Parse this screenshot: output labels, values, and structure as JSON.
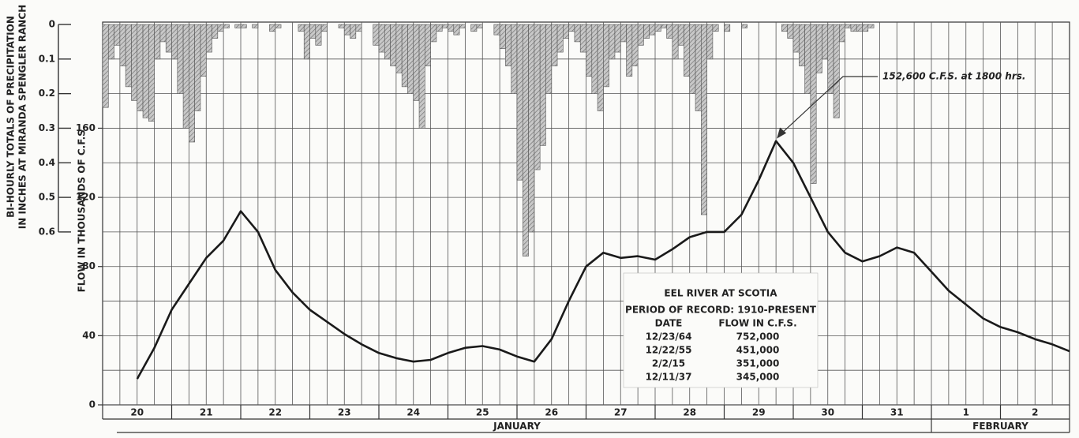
{
  "chart_data": {
    "type": "combo",
    "days": [
      "20",
      "21",
      "22",
      "23",
      "24",
      "25",
      "26",
      "27",
      "28",
      "29",
      "30",
      "31",
      "1",
      "2"
    ],
    "months": [
      "JANUARY",
      "FEBRUARY"
    ],
    "precipitation": {
      "type": "bar",
      "ylabel": [
        "BI-HOURLY TOTALS OF PRECIPITATION",
        "IN INCHES AT MIRANDA SPENGLER RANCH"
      ],
      "color": "#a8a8a8",
      "ylim": [
        0,
        1.1
      ],
      "yticks": [
        0,
        0.1,
        0.2,
        0.3,
        0.4,
        0.5,
        0.6
      ],
      "values": [
        0.24,
        0.1,
        0.06,
        0.12,
        0.18,
        0.22,
        0.25,
        0.27,
        0.28,
        0.1,
        0.05,
        0.08,
        0.1,
        0.2,
        0.3,
        0.34,
        0.25,
        0.15,
        0.08,
        0.04,
        0.02,
        0.01,
        0,
        0.01,
        0.01,
        0,
        0.01,
        0,
        0,
        0.02,
        0.01,
        0,
        0,
        0,
        0.02,
        0.1,
        0.04,
        0.06,
        0.02,
        0,
        0,
        0.01,
        0.03,
        0.04,
        0.02,
        0,
        0,
        0.06,
        0.08,
        0.1,
        0.12,
        0.14,
        0.18,
        0.2,
        0.22,
        0.3,
        0.12,
        0.05,
        0.02,
        0.01,
        0.02,
        0.03,
        0.01,
        0,
        0.02,
        0.01,
        0,
        0,
        0.03,
        0.07,
        0.12,
        0.2,
        0.45,
        0.67,
        0.6,
        0.42,
        0.35,
        0.2,
        0.12,
        0.08,
        0.04,
        0.02,
        0.05,
        0.08,
        0.15,
        0.2,
        0.25,
        0.18,
        0.1,
        0.08,
        0.05,
        0.15,
        0.12,
        0.06,
        0.04,
        0.03,
        0.02,
        0.01,
        0.04,
        0.1,
        0.06,
        0.15,
        0.2,
        0.25,
        0.55,
        0.1,
        0.02,
        0,
        0.02,
        0,
        0,
        0.01,
        0,
        0,
        0,
        0,
        0,
        0,
        0.02,
        0.04,
        0.08,
        0.12,
        0.2,
        0.46,
        0.14,
        0.1,
        0.2,
        0.27,
        0.05,
        0.01,
        0.02,
        0.02,
        0.02,
        0.01,
        0,
        0,
        0,
        0,
        0,
        0,
        0,
        0,
        0,
        0,
        0,
        0,
        0,
        0,
        0,
        0,
        0,
        0,
        0,
        0,
        0,
        0,
        0,
        0,
        0,
        0,
        0,
        0,
        0,
        0,
        0,
        0,
        0,
        0
      ]
    },
    "flow": {
      "type": "line",
      "ylabel": "FLOW IN THOUSANDS OF C.F.S.",
      "color": "#1a1a1a",
      "ylim": [
        0,
        220
      ],
      "yticks": [
        0,
        40,
        80,
        120,
        160
      ],
      "values": [
        null,
        null,
        15,
        33,
        55,
        70,
        85,
        95,
        112,
        100,
        78,
        65,
        55,
        48,
        41,
        35,
        30,
        27,
        25,
        26,
        30,
        33,
        34,
        32,
        28,
        25,
        38,
        60,
        80,
        88,
        85,
        86,
        84,
        90,
        97,
        100,
        100,
        110,
        130,
        152.6,
        140,
        120,
        100,
        88,
        83,
        86,
        91,
        88,
        77,
        66,
        58,
        50,
        45,
        42,
        38,
        35,
        31
      ]
    },
    "annotation": "152,600 C.F.S. at 1800 hrs.",
    "record_box": {
      "title": "EEL RIVER AT SCOTIA",
      "subtitle": "PERIOD OF RECORD: 1910-PRESENT",
      "columns": [
        "DATE",
        "FLOW IN C.F.S."
      ],
      "rows": [
        [
          "12/23/64",
          "752,000"
        ],
        [
          "12/22/55",
          "451,000"
        ],
        [
          "2/2/15",
          "351,000"
        ],
        [
          "12/11/37",
          "345,000"
        ]
      ]
    }
  }
}
